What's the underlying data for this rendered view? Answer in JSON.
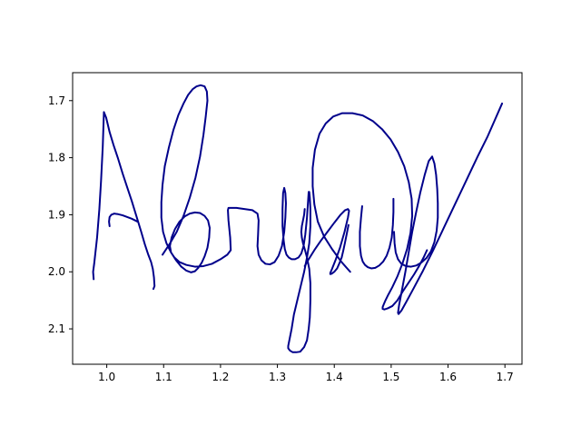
{
  "chart_data": {
    "type": "line",
    "title": "",
    "xlabel": "",
    "ylabel": "",
    "xlim": [
      0.94,
      1.73
    ],
    "ylim": [
      2.162,
      1.651
    ],
    "y_inverted": true,
    "grid": false,
    "x_ticks": [
      1.0,
      1.1,
      1.2,
      1.3,
      1.4,
      1.5,
      1.6,
      1.7
    ],
    "x_tick_labels": [
      "1.0",
      "1.1",
      "1.2",
      "1.3",
      "1.4",
      "1.5",
      "1.6",
      "1.7"
    ],
    "y_ticks": [
      1.7,
      1.8,
      1.9,
      2.0,
      2.1
    ],
    "y_tick_labels": [
      "1.7",
      "1.8",
      "1.9",
      "2.0",
      "2.1"
    ],
    "line_color": "#00008b",
    "strokes": [
      {
        "x": [
          0.977,
          0.976,
          0.978,
          0.983,
          0.987,
          0.99,
          0.993,
          0.995,
          0.999,
          1.005,
          1.012,
          1.02,
          1.028,
          1.036,
          1.044,
          1.052,
          1.06,
          1.067,
          1.073,
          1.078,
          1.081,
          1.083,
          1.084,
          1.082
        ],
        "y": [
          2.013,
          2.0,
          1.985,
          1.94,
          1.89,
          1.84,
          1.78,
          1.72,
          1.73,
          1.755,
          1.778,
          1.802,
          1.828,
          1.852,
          1.876,
          1.902,
          1.928,
          1.952,
          1.97,
          1.983,
          1.995,
          2.01,
          2.025,
          2.03
        ]
      },
      {
        "x": [
          1.005,
          1.004,
          1.005,
          1.008,
          1.013,
          1.02,
          1.028,
          1.036,
          1.044,
          1.05,
          1.054
        ],
        "y": [
          1.92,
          1.912,
          1.904,
          1.9,
          1.898,
          1.899,
          1.901,
          1.904,
          1.907,
          1.91,
          1.912
        ]
      },
      {
        "x": [
          1.098,
          1.11,
          1.123,
          1.135,
          1.146,
          1.156,
          1.164,
          1.17,
          1.174,
          1.177,
          1.176,
          1.172,
          1.165,
          1.158,
          1.151,
          1.143,
          1.135,
          1.126,
          1.117,
          1.109,
          1.102,
          1.098,
          1.096,
          1.096,
          1.099,
          1.105,
          1.113,
          1.122,
          1.131,
          1.14,
          1.148,
          1.155,
          1.161,
          1.167,
          1.172,
          1.177,
          1.18,
          1.181,
          1.178,
          1.172,
          1.164,
          1.155,
          1.146,
          1.137,
          1.128,
          1.12,
          1.114,
          1.111,
          1.113,
          1.119,
          1.128,
          1.14,
          1.155,
          1.17,
          1.185,
          1.2,
          1.212,
          1.218,
          1.217,
          1.214,
          1.213,
          1.214,
          1.218,
          1.228,
          1.242,
          1.256,
          1.265,
          1.267,
          1.266,
          1.265,
          1.267,
          1.272,
          1.279,
          1.287,
          1.295,
          1.302,
          1.308,
          1.312,
          1.314,
          1.315,
          1.314,
          1.312,
          1.31,
          1.309,
          1.309,
          1.311,
          1.313,
          1.316,
          1.32,
          1.325,
          1.331,
          1.337,
          1.342,
          1.346,
          1.349,
          1.352,
          1.354,
          1.355,
          1.356,
          1.357,
          1.358,
          1.358,
          1.356,
          1.352,
          1.347,
          1.341,
          1.335,
          1.329,
          1.325,
          1.321,
          1.319,
          1.319,
          1.322,
          1.327,
          1.333,
          1.34,
          1.347,
          1.352,
          1.355,
          1.357,
          1.358,
          1.358,
          1.356,
          1.352,
          1.348,
          1.345,
          1.343,
          1.342,
          1.343,
          1.345,
          1.347,
          1.348
        ],
        "y": [
          1.97,
          1.952,
          1.93,
          1.902,
          1.87,
          1.835,
          1.798,
          1.76,
          1.728,
          1.7,
          1.684,
          1.675,
          1.673,
          1.675,
          1.68,
          1.69,
          1.705,
          1.725,
          1.752,
          1.783,
          1.815,
          1.848,
          1.878,
          1.905,
          1.93,
          1.95,
          1.966,
          1.98,
          1.991,
          1.998,
          2.001,
          1.999,
          1.993,
          1.984,
          1.973,
          1.958,
          1.94,
          1.923,
          1.91,
          1.902,
          1.897,
          1.896,
          1.898,
          1.903,
          1.912,
          1.925,
          1.94,
          1.955,
          1.966,
          1.975,
          1.983,
          1.988,
          1.991,
          1.99,
          1.986,
          1.978,
          1.97,
          1.962,
          1.94,
          1.91,
          1.892,
          1.888,
          1.888,
          1.888,
          1.89,
          1.892,
          1.898,
          1.91,
          1.935,
          1.955,
          1.97,
          1.98,
          1.986,
          1.987,
          1.983,
          1.972,
          1.955,
          1.93,
          1.905,
          1.88,
          1.862,
          1.853,
          1.862,
          1.89,
          1.92,
          1.945,
          1.96,
          1.97,
          1.975,
          1.978,
          1.978,
          1.975,
          1.968,
          1.955,
          1.935,
          1.905,
          1.875,
          1.86,
          1.86,
          1.87,
          1.89,
          1.92,
          1.95,
          1.975,
          2.0,
          2.025,
          2.05,
          2.075,
          2.1,
          2.12,
          2.13,
          2.134,
          2.138,
          2.141,
          2.141,
          2.14,
          2.132,
          2.12,
          2.1,
          2.08,
          2.05,
          2.02,
          1.995,
          1.975,
          1.96,
          1.95,
          1.94,
          1.93,
          1.92,
          1.91,
          1.9,
          1.89
        ]
      },
      {
        "x": [
          1.348,
          1.355,
          1.365,
          1.376,
          1.388,
          1.4,
          1.411,
          1.419,
          1.424,
          1.426,
          1.424,
          1.418,
          1.41,
          1.402,
          1.396,
          1.393,
          1.393,
          1.396,
          1.4,
          1.405,
          1.409,
          1.413,
          1.416,
          1.419,
          1.422,
          1.425
        ],
        "y": [
          1.99,
          1.978,
          1.962,
          1.946,
          1.93,
          1.914,
          1.9,
          1.892,
          1.89,
          1.893,
          1.905,
          1.93,
          1.958,
          1.98,
          1.995,
          2.002,
          2.004,
          2.003,
          2.0,
          1.994,
          1.985,
          1.975,
          1.962,
          1.948,
          1.933,
          1.918
        ]
      },
      {
        "x": [
          1.449,
          1.447,
          1.445,
          1.445,
          1.447,
          1.45,
          1.454,
          1.459,
          1.465,
          1.472,
          1.479,
          1.486,
          1.492,
          1.497,
          1.501,
          1.503,
          1.504,
          1.504
        ],
        "y": [
          1.885,
          1.905,
          1.93,
          1.955,
          1.972,
          1.982,
          1.988,
          1.992,
          1.994,
          1.993,
          1.989,
          1.982,
          1.972,
          1.958,
          1.94,
          1.918,
          1.895,
          1.872
        ]
      },
      {
        "x": [
          1.428,
          1.412,
          1.396,
          1.382,
          1.371,
          1.365,
          1.362,
          1.362,
          1.366,
          1.374,
          1.385,
          1.398,
          1.414,
          1.432,
          1.45,
          1.468,
          1.484,
          1.499,
          1.512,
          1.523,
          1.531,
          1.536,
          1.537,
          1.534,
          1.528,
          1.52,
          1.511,
          1.502,
          1.495,
          1.49,
          1.487,
          1.485,
          1.485,
          1.488,
          1.494,
          1.502,
          1.511,
          1.52,
          1.53,
          1.54,
          1.549,
          1.557,
          1.563
        ],
        "y": [
          2.0,
          1.982,
          1.96,
          1.938,
          1.912,
          1.882,
          1.85,
          1.818,
          1.786,
          1.758,
          1.74,
          1.728,
          1.722,
          1.722,
          1.726,
          1.736,
          1.75,
          1.768,
          1.79,
          1.815,
          1.843,
          1.872,
          1.902,
          1.932,
          1.96,
          1.985,
          2.008,
          2.027,
          2.04,
          2.05,
          2.057,
          2.062,
          2.065,
          2.066,
          2.064,
          2.06,
          2.05,
          2.035,
          2.02,
          2.005,
          1.99,
          1.975,
          1.962
        ]
      },
      {
        "x": [
          1.505,
          1.506,
          1.508,
          1.512,
          1.518,
          1.526,
          1.535,
          1.544,
          1.553,
          1.562,
          1.57,
          1.576,
          1.58,
          1.582,
          1.582,
          1.581,
          1.579,
          1.576,
          1.572,
          1.566,
          1.559,
          1.551,
          1.544,
          1.537,
          1.531,
          1.525,
          1.519,
          1.514,
          1.512,
          1.513,
          1.518,
          1.527,
          1.54,
          1.556,
          1.574,
          1.593,
          1.613,
          1.633,
          1.652,
          1.669,
          1.684,
          1.695
        ],
        "y": [
          1.93,
          1.95,
          1.966,
          1.978,
          1.986,
          1.99,
          1.991,
          1.989,
          1.984,
          1.976,
          1.964,
          1.948,
          1.928,
          1.905,
          1.88,
          1.855,
          1.83,
          1.81,
          1.798,
          1.806,
          1.83,
          1.862,
          1.895,
          1.93,
          1.965,
          2.0,
          2.032,
          2.058,
          2.072,
          2.074,
          2.068,
          2.052,
          2.028,
          1.998,
          1.962,
          1.922,
          1.88,
          1.838,
          1.798,
          1.764,
          1.73,
          1.705
        ]
      }
    ]
  }
}
